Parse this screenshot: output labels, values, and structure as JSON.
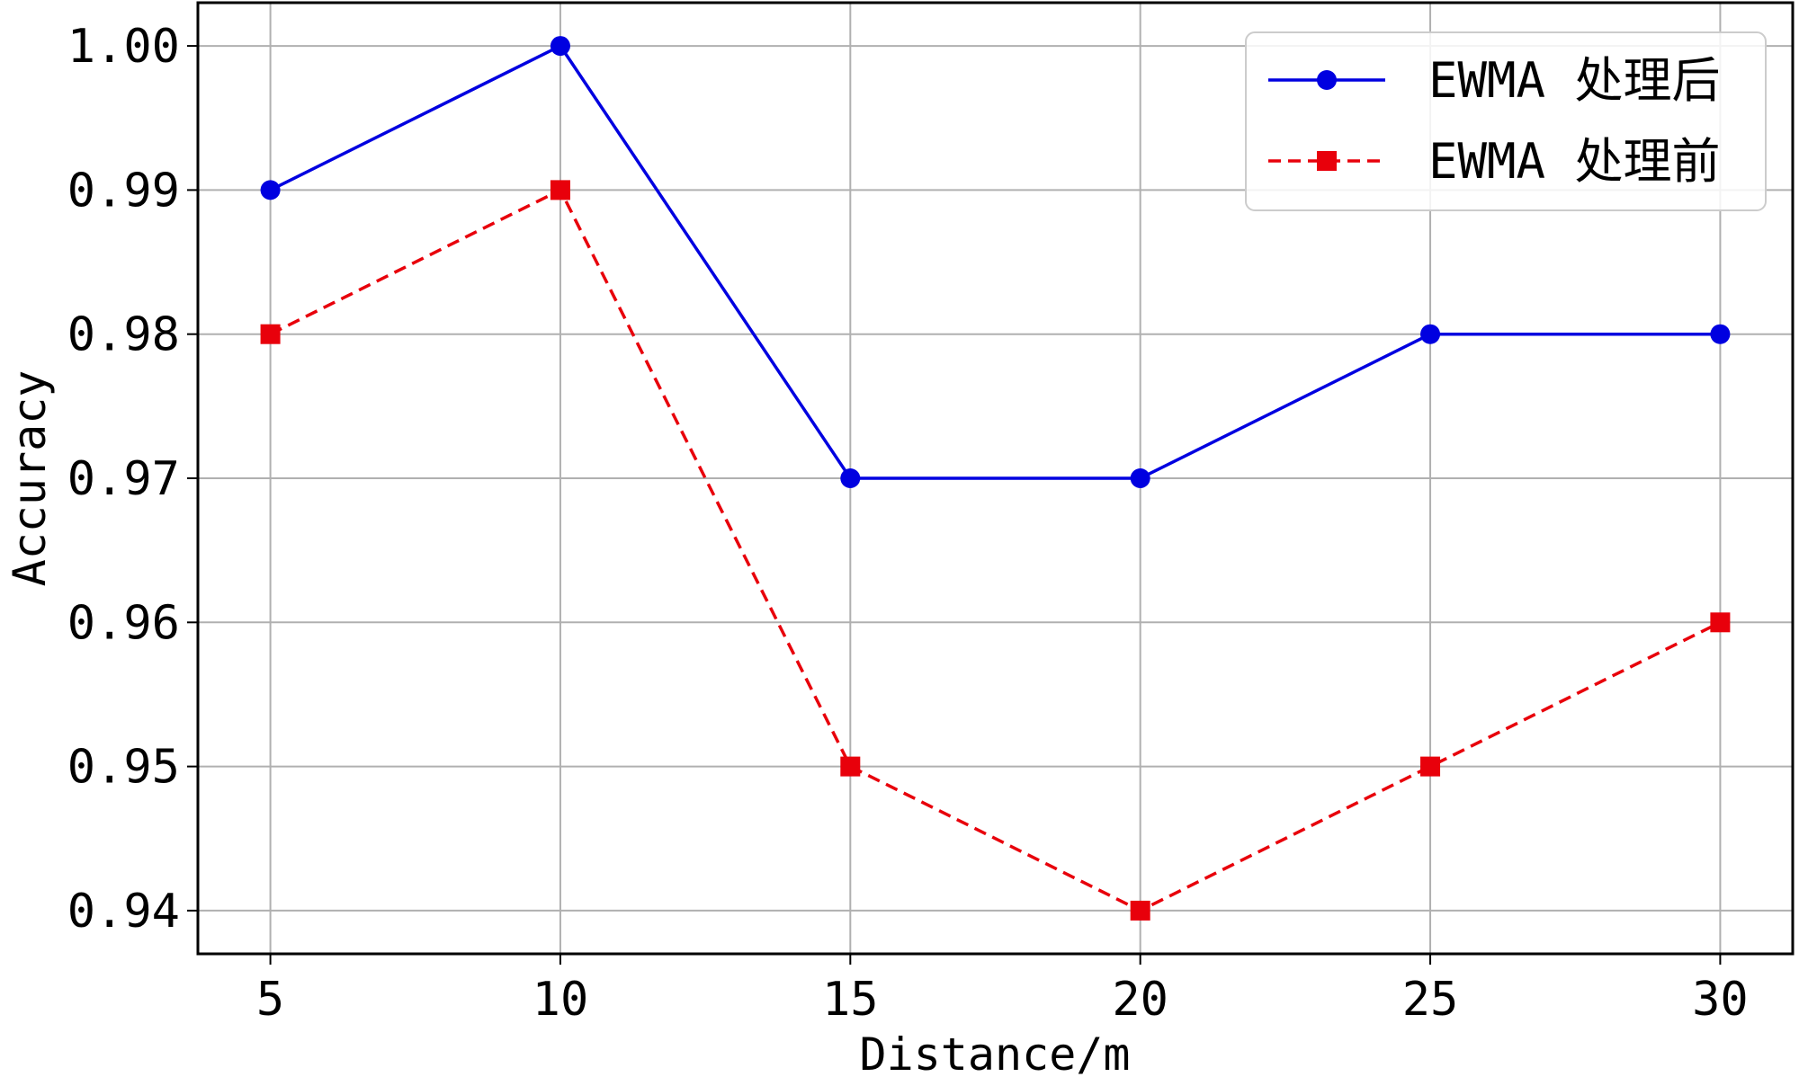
{
  "chart_data": {
    "type": "line",
    "xlabel": "Distance/m",
    "ylabel": "Accuracy",
    "x": [
      5,
      10,
      15,
      20,
      25,
      30
    ],
    "x_ticks": [
      "5",
      "10",
      "15",
      "20",
      "25",
      "30"
    ],
    "y_ticks": [
      "0.94",
      "0.95",
      "0.96",
      "0.97",
      "0.98",
      "0.99",
      "1.00"
    ],
    "y_tick_values": [
      0.94,
      0.95,
      0.96,
      0.97,
      0.98,
      0.99,
      1.0
    ],
    "xlim": [
      3.75,
      31.25
    ],
    "ylim": [
      0.937,
      1.003
    ],
    "grid": true,
    "legend_position": "top-right",
    "series": [
      {
        "name": "EWMA 处理后",
        "values": [
          0.99,
          1.0,
          0.97,
          0.97,
          0.98,
          0.98
        ],
        "color": "#0000e0",
        "line_style": "solid",
        "marker": "circle"
      },
      {
        "name": "EWMA 处理前",
        "values": [
          0.98,
          0.99,
          0.95,
          0.94,
          0.95,
          0.96
        ],
        "color": "#e8000b",
        "line_style": "dashed",
        "marker": "square"
      }
    ]
  }
}
